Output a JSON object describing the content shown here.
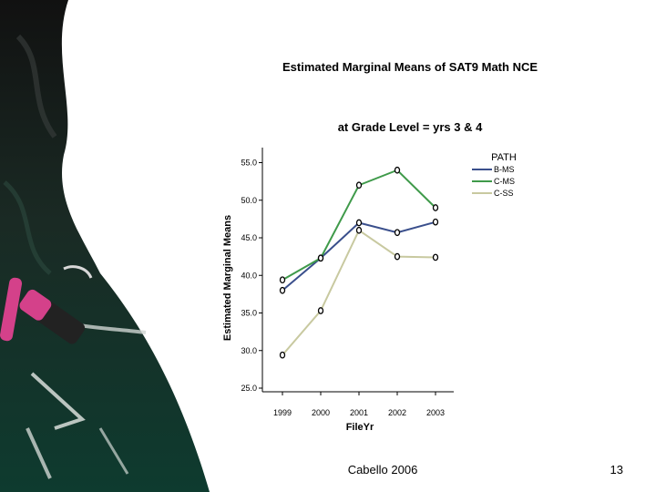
{
  "slide": {
    "footer_text": "Cabello 2006",
    "page_number": "13"
  },
  "chart_data": {
    "type": "line",
    "title": "Estimated Marginal Means of SAT9 Math NCE",
    "subtitle": "at Grade Level = yrs 3 & 4",
    "xlabel": "FileYr",
    "ylabel": "Estimated Marginal Means",
    "x": [
      "1999",
      "2000",
      "2001",
      "2002",
      "2003"
    ],
    "yticks": [
      "25.0",
      "30.0",
      "35.0",
      "40.0",
      "45.0",
      "50.0",
      "55.0"
    ],
    "ylim": [
      25,
      57
    ],
    "grid": false,
    "legend": {
      "title": "PATH",
      "position": "top-right"
    },
    "series": [
      {
        "name": "B-MS",
        "color": "#3a4f8c",
        "values": [
          38.0,
          42.3,
          47.0,
          45.7,
          47.1
        ]
      },
      {
        "name": "C-MS",
        "color": "#3f9a4a",
        "values": [
          39.4,
          42.3,
          52.0,
          54.0,
          49.0
        ]
      },
      {
        "name": "C-SS",
        "color": "#c8c9a0",
        "values": [
          29.4,
          35.3,
          46.0,
          42.5,
          42.4
        ]
      }
    ]
  }
}
